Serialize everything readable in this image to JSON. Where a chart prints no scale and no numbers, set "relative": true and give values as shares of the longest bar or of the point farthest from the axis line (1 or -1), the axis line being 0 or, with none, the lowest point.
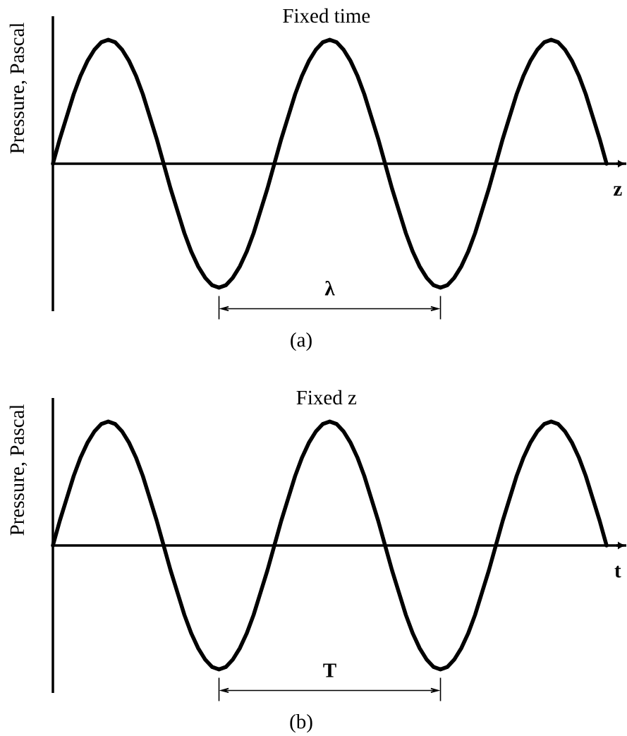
{
  "chart_data": [
    {
      "type": "line",
      "title": "Fixed time",
      "xlabel": "z",
      "ylabel": "Pressure, Pascal",
      "relative": true,
      "color": "#000000",
      "categories": [
        null,
        null,
        null,
        null,
        null,
        null,
        null,
        null,
        null,
        null,
        null,
        null,
        null,
        null,
        null,
        null,
        null,
        null,
        null,
        null,
        null,
        null,
        null,
        null,
        null,
        null,
        null,
        null,
        null,
        null,
        null,
        null,
        null,
        null,
        null,
        null,
        null,
        null,
        null,
        null,
        null,
        null,
        null,
        null,
        null,
        null,
        null,
        null,
        null,
        null,
        null,
        null,
        null,
        null,
        null,
        null,
        null,
        null,
        null,
        null,
        null,
        null,
        null,
        null,
        null,
        null,
        null,
        null,
        null,
        null,
        null,
        null,
        null,
        null,
        null,
        null,
        null,
        null,
        null,
        null,
        null
      ],
      "values": [
        0,
        0.2,
        0.38,
        0.56,
        0.71,
        0.83,
        0.92,
        0.98,
        1,
        0.98,
        0.92,
        0.83,
        0.71,
        0.56,
        0.38,
        0.2,
        0,
        -0.2,
        -0.38,
        -0.56,
        -0.71,
        -0.83,
        -0.92,
        -0.98,
        -1,
        -0.98,
        -0.92,
        -0.83,
        -0.71,
        -0.56,
        -0.38,
        -0.2,
        0,
        0.2,
        0.38,
        0.56,
        0.71,
        0.83,
        0.92,
        0.98,
        1,
        0.98,
        0.92,
        0.83,
        0.71,
        0.56,
        0.38,
        0.2,
        0,
        -0.2,
        -0.38,
        -0.56,
        -0.71,
        -0.83,
        -0.92,
        -0.98,
        -1,
        -0.98,
        -0.92,
        -0.83,
        -0.71,
        -0.56,
        -0.38,
        -0.2,
        0,
        0.2,
        0.38,
        0.56,
        0.71,
        0.83,
        0.92,
        0.98,
        1,
        0.98,
        0.92,
        0.83,
        0.71,
        0.56,
        0.38,
        0.2,
        0
      ],
      "annotations": [
        "λ",
        "(a)"
      ]
    },
    {
      "type": "line",
      "title": "Fixed z",
      "xlabel": "t",
      "ylabel": "Pressure, Pascal",
      "relative": true,
      "color": "#000000",
      "categories": [
        null,
        null,
        null,
        null,
        null,
        null,
        null,
        null,
        null,
        null,
        null,
        null,
        null,
        null,
        null,
        null,
        null,
        null,
        null,
        null,
        null,
        null,
        null,
        null,
        null,
        null,
        null,
        null,
        null,
        null,
        null,
        null,
        null,
        null,
        null,
        null,
        null,
        null,
        null,
        null,
        null,
        null,
        null,
        null,
        null,
        null,
        null,
        null,
        null,
        null,
        null,
        null,
        null,
        null,
        null,
        null,
        null,
        null,
        null,
        null,
        null,
        null,
        null,
        null,
        null,
        null,
        null,
        null,
        null,
        null,
        null,
        null,
        null,
        null,
        null,
        null,
        null,
        null,
        null,
        null,
        null
      ],
      "values": [
        0,
        0.2,
        0.38,
        0.56,
        0.71,
        0.83,
        0.92,
        0.98,
        1,
        0.98,
        0.92,
        0.83,
        0.71,
        0.56,
        0.38,
        0.2,
        0,
        -0.2,
        -0.38,
        -0.56,
        -0.71,
        -0.83,
        -0.92,
        -0.98,
        -1,
        -0.98,
        -0.92,
        -0.83,
        -0.71,
        -0.56,
        -0.38,
        -0.2,
        0,
        0.2,
        0.38,
        0.56,
        0.71,
        0.83,
        0.92,
        0.98,
        1,
        0.98,
        0.92,
        0.83,
        0.71,
        0.56,
        0.38,
        0.2,
        0,
        -0.2,
        -0.38,
        -0.56,
        -0.71,
        -0.83,
        -0.92,
        -0.98,
        -1,
        -0.98,
        -0.92,
        -0.83,
        -0.71,
        -0.56,
        -0.38,
        -0.2,
        0,
        0.2,
        0.38,
        0.56,
        0.71,
        0.83,
        0.92,
        0.98,
        1,
        0.98,
        0.92,
        0.83,
        0.71,
        0.56,
        0.38,
        0.2,
        0
      ],
      "annotations": [
        "T",
        "(b)"
      ]
    }
  ]
}
